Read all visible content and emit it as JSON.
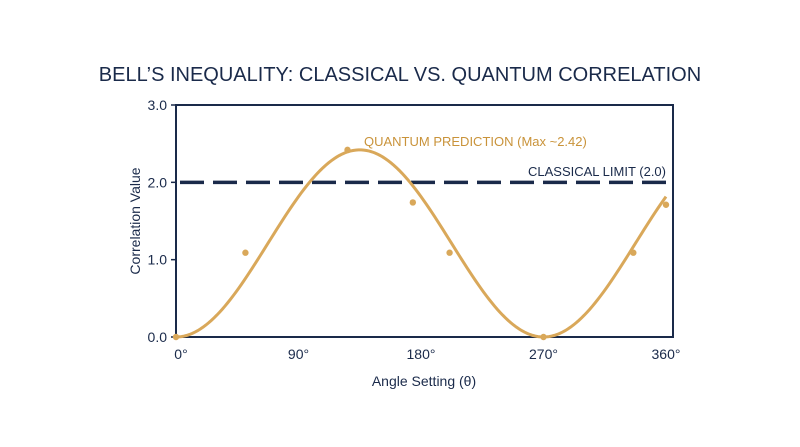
{
  "chart_data": {
    "type": "line",
    "title": "BELL’S INEQUALITY: CLASSICAL VS. QUANTUM CORRELATION",
    "xlabel": "Angle Setting (θ)",
    "ylabel": "Correlation Value",
    "xlim": [
      0,
      360
    ],
    "ylim": [
      0,
      3
    ],
    "x_ticks": [
      {
        "value": 0,
        "label": "0°"
      },
      {
        "value": 90,
        "label": "90°"
      },
      {
        "value": 180,
        "label": "180°"
      },
      {
        "value": 270,
        "label": "270°"
      },
      {
        "value": 360,
        "label": "360°"
      }
    ],
    "y_ticks": [
      {
        "value": 0,
        "label": "0.0"
      },
      {
        "value": 1,
        "label": "1.0"
      },
      {
        "value": 2,
        "label": "2.0"
      },
      {
        "value": 3,
        "label": "3.0"
      }
    ],
    "grid": false,
    "series": [
      {
        "color": "#d9a85a",
        "curve": {
          "amplitude": 1.21,
          "offset": 1.21,
          "phase_deg": 135,
          "period_deg": 270
        },
        "points": [
          {
            "x": 0,
            "y": 0.0
          },
          {
            "x": 51,
            "y": 1.09
          },
          {
            "x": 126,
            "y": 2.42
          },
          {
            "x": 174,
            "y": 1.74
          },
          {
            "x": 201,
            "y": 1.09
          },
          {
            "x": 270,
            "y": 0.0
          },
          {
            "x": 336,
            "y": 1.09
          },
          {
            "x": 360,
            "y": 1.71
          }
        ]
      }
    ],
    "reference_line": {
      "y": 2.0,
      "color": "#1a2a4a",
      "style": "dashed"
    },
    "annotations": {
      "quantum": {
        "text": "QUANTUM PREDICTION (Max ~2.42)",
        "color": "#c9933a"
      },
      "classical": {
        "text": "CLASSICAL LIMIT (2.0)",
        "color": "#1a2a4a"
      }
    },
    "colors": {
      "axis": "#1a2a4a",
      "text": "#1a2a4a",
      "quantum": "#d9a85a",
      "classical": "#1a2a4a"
    }
  }
}
